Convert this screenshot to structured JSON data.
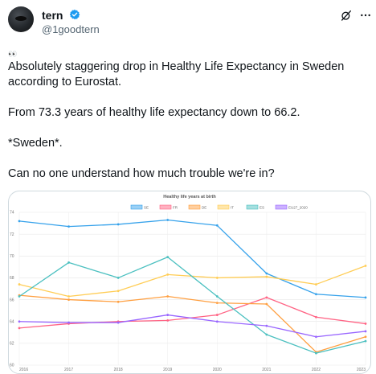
{
  "post": {
    "author_name": "tern",
    "handle": "@1goodtern",
    "emoji": "👀",
    "lines": [
      "Absolutely staggering drop in Healthy Life Expectancy in Sweden",
      "according to Eurostat.",
      "From 73.3 years of healthy life expectancy down to 66.2.",
      "*Sweden*.",
      "Can no one understand how much trouble we're in?"
    ]
  },
  "icons": {
    "verified": "verified-badge-icon",
    "grok": "grok-icon",
    "more": "more-options-icon"
  },
  "colors": {
    "SE": "#36a2eb",
    "FR": "#ff6384",
    "DE": "#ff9f40",
    "IT": "#ffcd56",
    "ES": "#4bc0c0",
    "EU27_2020": "#9966ff",
    "verified": "#1d9bf0"
  },
  "chart_data": {
    "type": "line",
    "title": "Healthy life years at birth",
    "x": [
      "2016",
      "2017",
      "2018",
      "2019",
      "2020",
      "2021",
      "2022",
      "2023"
    ],
    "ylim": [
      60,
      74
    ],
    "yticks": [
      "74",
      "72",
      "70",
      "68",
      "66",
      "64",
      "62",
      "60"
    ],
    "legend_position": "top-center",
    "grid": true,
    "series": [
      {
        "name": "SE",
        "values": [
          73.2,
          72.7,
          72.9,
          73.3,
          72.8,
          68.4,
          66.5,
          66.2
        ]
      },
      {
        "name": "FR",
        "values": [
          63.4,
          63.8,
          64.0,
          64.1,
          64.6,
          66.2,
          64.4,
          63.8
        ]
      },
      {
        "name": "DE",
        "values": [
          66.4,
          66.0,
          65.8,
          66.3,
          65.7,
          65.6,
          61.2,
          62.6
        ]
      },
      {
        "name": "IT",
        "values": [
          67.4,
          66.3,
          66.8,
          68.3,
          68.0,
          68.1,
          67.4,
          69.1
        ]
      },
      {
        "name": "ES",
        "values": [
          66.3,
          69.4,
          68.0,
          69.9,
          66.3,
          62.8,
          61.1,
          62.2
        ]
      },
      {
        "name": "EU27_2020",
        "values": [
          64.0,
          63.9,
          63.9,
          64.6,
          64.0,
          63.6,
          62.6,
          63.1
        ]
      }
    ]
  }
}
